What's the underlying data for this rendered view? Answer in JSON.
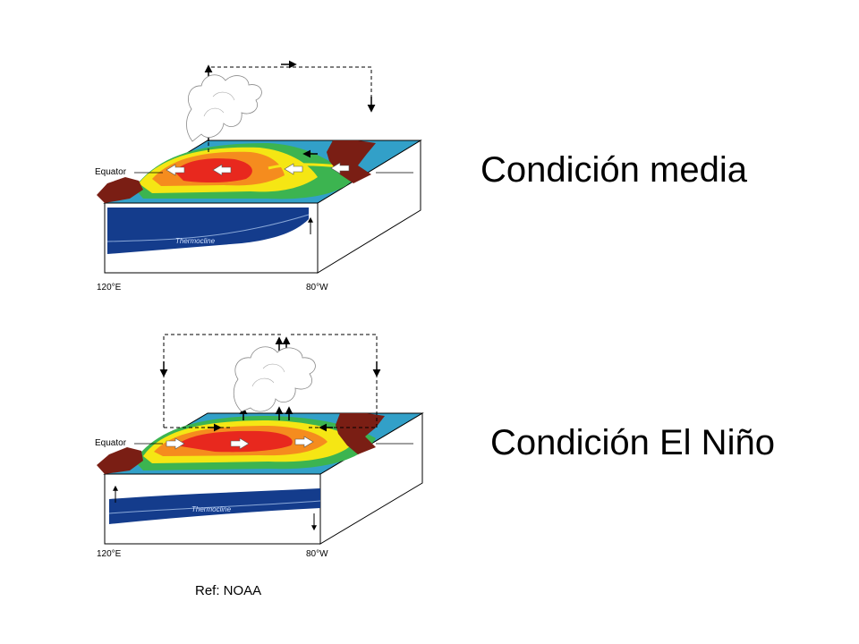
{
  "diagrams": [
    {
      "heading": "Condición media",
      "equator_label": "Equator",
      "lon_left": "120°E",
      "lon_right": "80°W",
      "thermocline_label": "Thermocline"
    },
    {
      "heading": "Condición El Niño",
      "equator_label": "Equator",
      "lon_left": "120°E",
      "lon_right": "80°W",
      "thermocline_label": "Thermocline"
    }
  ],
  "reference": "Ref: NOAA",
  "colors": {
    "deep_ocean": "#143c8c",
    "warm_core": "#e8281e",
    "warm": "#f58c1e",
    "mild": "#f5e614",
    "cool": "#3cb450",
    "cold": "#32a0c8",
    "land": "#7a1e14"
  }
}
